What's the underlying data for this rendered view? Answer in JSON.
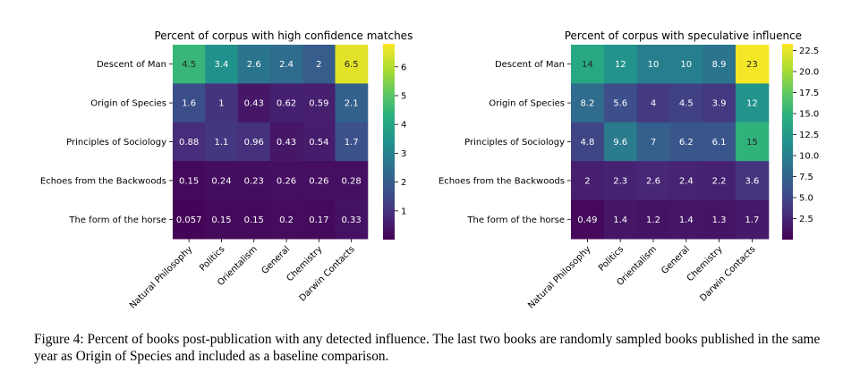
{
  "chart_data": [
    {
      "type": "heatmap",
      "title": "Percent of corpus with high confidence matches",
      "rows": [
        "Descent of Man",
        "Origin of Species",
        "Principles of Sociology",
        "Echoes from the Backwoods",
        "The form of the horse"
      ],
      "columns": [
        "Natural Philosophy",
        "Politics",
        "Orientalism",
        "General",
        "Chemistry",
        "Darwin Contacts"
      ],
      "values": [
        [
          "4.5",
          "3.4",
          "2.6",
          "2.4",
          "2",
          "6.5"
        ],
        [
          "1.6",
          "1",
          "0.43",
          "0.62",
          "0.59",
          "2.1"
        ],
        [
          "0.88",
          "1.1",
          "0.96",
          "0.43",
          "0.54",
          "1.7"
        ],
        [
          "0.15",
          "0.24",
          "0.23",
          "0.26",
          "0.26",
          "0.28"
        ],
        [
          "0.057",
          "0.15",
          "0.15",
          "0.2",
          "0.17",
          "0.33"
        ]
      ],
      "colorbar": {
        "min": 0,
        "max": 6.8,
        "ticks": [
          "1",
          "2",
          "3",
          "4",
          "5",
          "6"
        ],
        "colormap": "viridis"
      }
    },
    {
      "type": "heatmap",
      "title": "Percent of corpus with speculative influence",
      "rows": [
        "Descent of Man",
        "Origin of Species",
        "Principles of Sociology",
        "Echoes from the Backwoods",
        "The form of the horse"
      ],
      "columns": [
        "Natural Philosophy",
        "Politics",
        "Orientalism",
        "General",
        "Chemistry",
        "Darwin Contacts"
      ],
      "values": [
        [
          "14",
          "12",
          "10",
          "10",
          "8.9",
          "23"
        ],
        [
          "8.2",
          "5.6",
          "4",
          "4.5",
          "3.9",
          "12"
        ],
        [
          "4.8",
          "9.6",
          "7",
          "6.2",
          "6.1",
          "15"
        ],
        [
          "2",
          "2.3",
          "2.6",
          "2.4",
          "2.2",
          "3.6"
        ],
        [
          "0.49",
          "1.4",
          "1.2",
          "1.4",
          "1.3",
          "1.7"
        ]
      ],
      "colorbar": {
        "min": 0,
        "max": 23.3,
        "ticks": [
          "2.5",
          "5.0",
          "7.5",
          "10.0",
          "12.5",
          "15.0",
          "17.5",
          "20.0",
          "22.5"
        ],
        "colormap": "viridis"
      }
    }
  ],
  "caption": "Figure 4: Percent of books post-publication with any detected influence. The last two books are randomly sampled books published in the same year as Origin of Species and included as a baseline comparison."
}
